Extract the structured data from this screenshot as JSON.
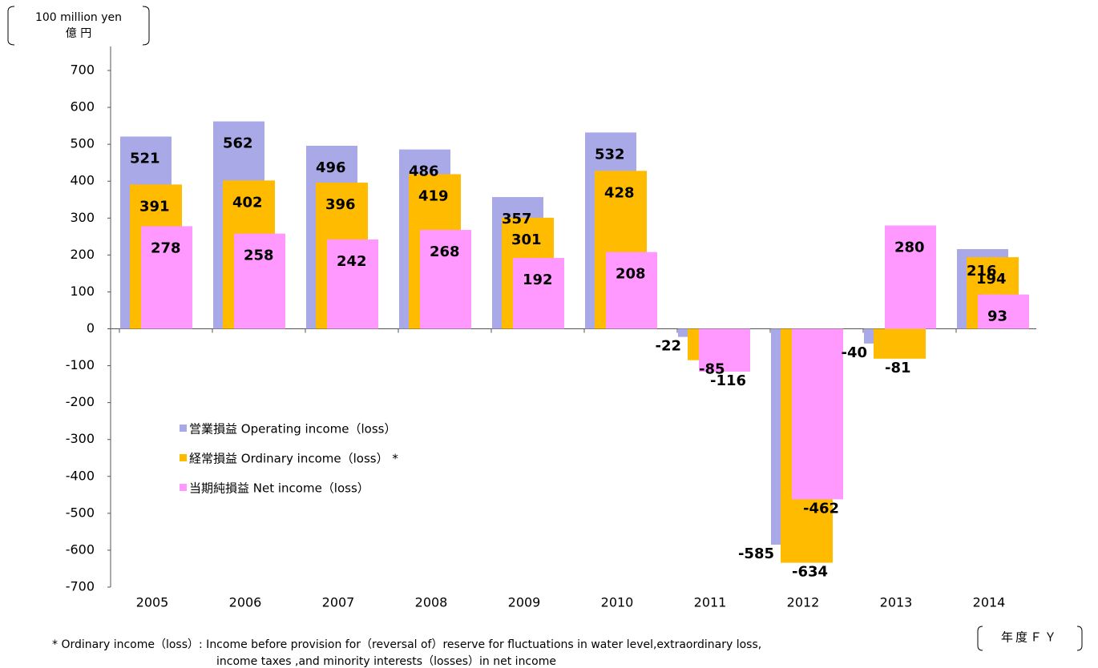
{
  "chart_data": {
    "type": "bar",
    "y_unit_label": "100 million yen",
    "y_unit_label_ja": "億 円",
    "x_unit_label": "年度ＦＹ",
    "categories": [
      "2005",
      "2006",
      "2007",
      "2008",
      "2009",
      "2010",
      "2011",
      "2012",
      "2013",
      "2014"
    ],
    "series": [
      {
        "name": "営業損益 Operating income（loss）",
        "color": "#a9a9e8",
        "values": [
          521,
          562,
          496,
          486,
          357,
          532,
          -22,
          -585,
          -40,
          216
        ]
      },
      {
        "name": "経常損益 Ordinary income（loss） *",
        "color": "#ffbb00",
        "values": [
          391,
          402,
          396,
          419,
          301,
          428,
          -85,
          -634,
          -81,
          194
        ]
      },
      {
        "name": "当期純損益 Net income（loss）",
        "color": "#ff99ff",
        "values": [
          278,
          258,
          242,
          268,
          192,
          208,
          -116,
          -462,
          280,
          93
        ]
      }
    ],
    "ylim": [
      -700,
      700
    ],
    "yticks": [
      -700,
      -600,
      -500,
      -400,
      -300,
      -200,
      -100,
      0,
      100,
      200,
      300,
      400,
      500,
      600,
      700
    ],
    "footnote": [
      "* Ordinary income（loss）: Income before provision for（reversal of）reserve for fluctuations in water level,extraordinary loss,",
      "income taxes ,and minority interests（losses）in net income"
    ]
  }
}
